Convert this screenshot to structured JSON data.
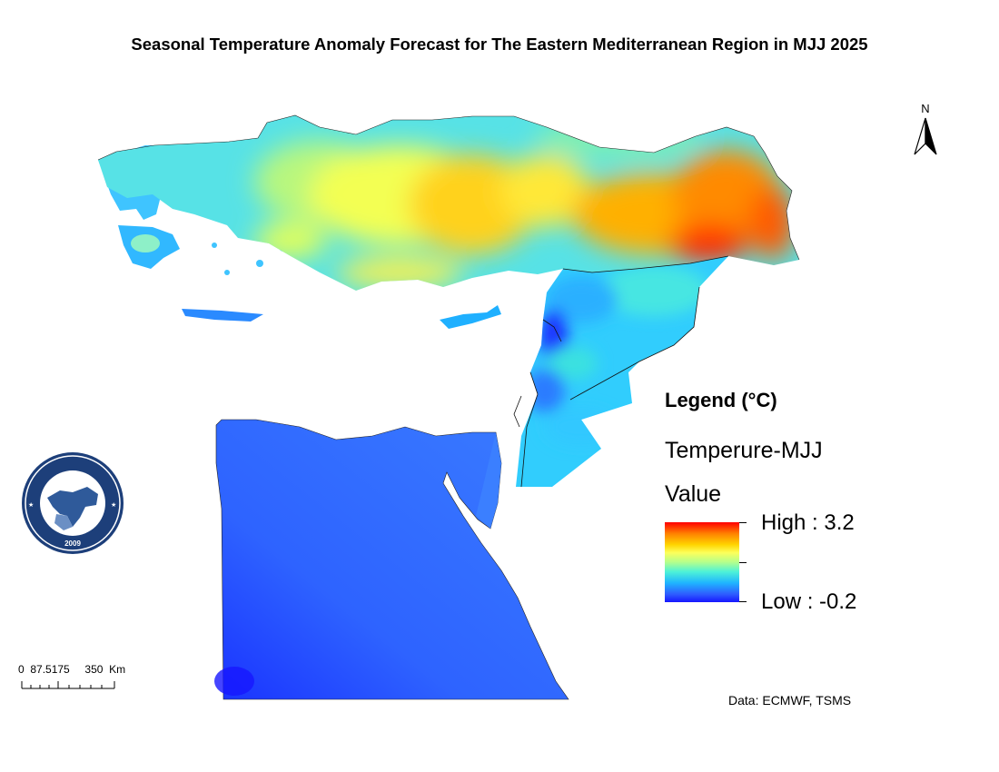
{
  "title": "Seasonal Temperature Anomaly Forecast for The Eastern Mediterranean Region in MJJ 2025",
  "north_arrow": {
    "label": "N",
    "icon": "north-arrow-icon"
  },
  "legend": {
    "heading": "Legend (°C)",
    "layer_name": "Temperure-MJJ",
    "field_label": "Value",
    "high_label": "High : 3.2",
    "low_label": "Low : -0.2",
    "high_value": 3.2,
    "low_value": -0.2,
    "ramp_colors": [
      "#ff0000",
      "#ff8000",
      "#ffd400",
      "#fdff5a",
      "#b4ff8c",
      "#4df2d8",
      "#1fb4ff",
      "#2e5cff",
      "#1616ff"
    ]
  },
  "scale_bar": {
    "labels": "0  87.5175     350  Km",
    "unit": "Km"
  },
  "credit": "Data: ECMWF, TSMS",
  "logo": {
    "icon": "emcc-logo-icon",
    "text": "EASTERN MEDITERRANEAN CLIMATE CENTRE",
    "year": "2009"
  }
}
